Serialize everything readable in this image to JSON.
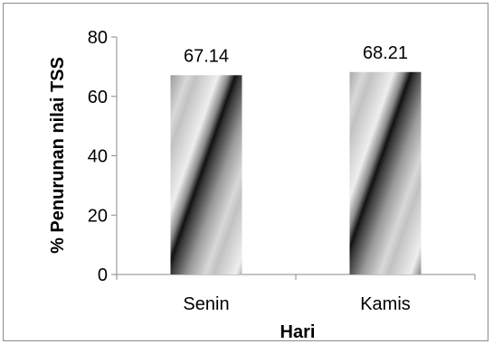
{
  "chart_data": {
    "type": "bar",
    "categories": [
      "Senin",
      "Kamis"
    ],
    "values": [
      67.14,
      68.21
    ],
    "data_labels": [
      "67.14",
      "68.21"
    ],
    "xlabel": "Hari",
    "ylabel": "% Penurunan nilai TSS",
    "ylim": [
      0,
      80
    ],
    "yticks": [
      0,
      20,
      40,
      60,
      80
    ],
    "grid": false,
    "legend": "none",
    "bar_fill": "diagonal grey gradient stripes",
    "colors": {
      "dark": "#111111",
      "mid": "#9a9a9a",
      "light": "#efefef",
      "axis": "#8a8a8a"
    }
  }
}
